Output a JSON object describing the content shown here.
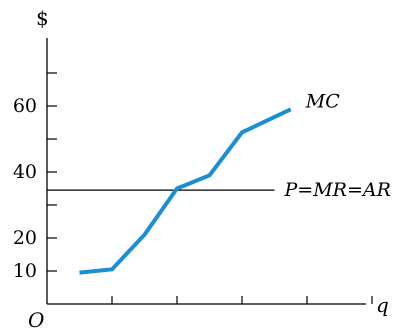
{
  "chart_data": {
    "type": "line",
    "title": "",
    "ylabel": "$",
    "xlabel": "q",
    "origin_label": "O",
    "y_ticks": [
      10,
      20,
      40,
      60
    ],
    "y_minor_ticks": [
      30,
      50,
      70
    ],
    "ylim": [
      0,
      80
    ],
    "x_tick_count": 5,
    "xlim": [
      0,
      11
    ],
    "series": [
      {
        "name": "MC",
        "color": "#1a8fd1",
        "x": [
          1.0,
          2.0,
          3.0,
          4.0,
          5.0,
          6.0,
          7.5
        ],
        "y": [
          9.5,
          10.5,
          21.0,
          35.0,
          39.0,
          52.0,
          59.0
        ]
      }
    ],
    "reference_lines": [
      {
        "label": "P=MR=AR",
        "y": 34.5,
        "x_range": [
          0,
          7.0
        ]
      }
    ],
    "grid": false
  }
}
